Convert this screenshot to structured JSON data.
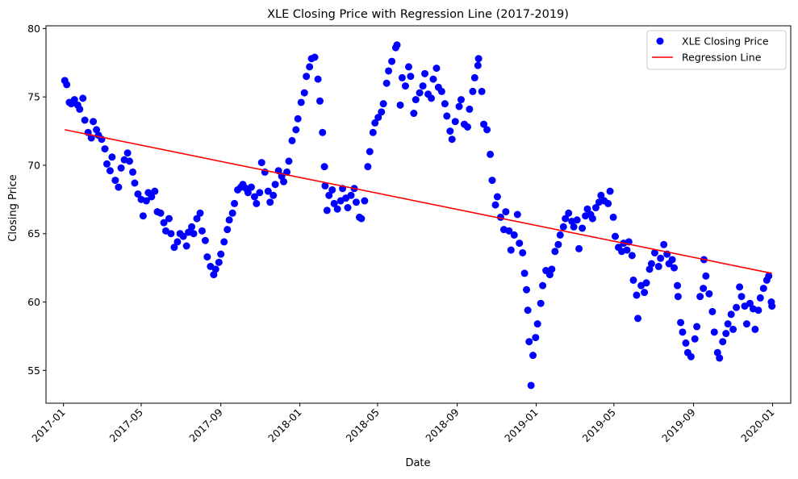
{
  "chart_data": {
    "type": "scatter",
    "title": "XLE Closing Price with Regression Line (2017-2019)",
    "xlabel": "Date",
    "ylabel": "Closing Price",
    "xlim": [
      "2016-12-05",
      "2020-01-29"
    ],
    "ylim": [
      52.6,
      80.2
    ],
    "x_ticks": [
      "2017-01",
      "2017-05",
      "2017-09",
      "2018-01",
      "2018-05",
      "2018-09",
      "2019-01",
      "2019-05",
      "2019-09",
      "2020-01"
    ],
    "y_ticks": [
      55,
      60,
      65,
      70,
      75,
      80
    ],
    "grid": false,
    "legend_position": "top-right",
    "colors": {
      "scatter": "#0000ff",
      "regression": "#ff0000"
    },
    "series": [
      {
        "name": "XLE Closing Price",
        "kind": "scatter",
        "points": [
          [
            "2017-01-03",
            76.2
          ],
          [
            "2017-01-06",
            75.9
          ],
          [
            "2017-01-10",
            74.6
          ],
          [
            "2017-01-13",
            74.5
          ],
          [
            "2017-01-18",
            74.8
          ],
          [
            "2017-01-23",
            74.4
          ],
          [
            "2017-01-26",
            74.1
          ],
          [
            "2017-01-31",
            74.9
          ],
          [
            "2017-02-03",
            73.3
          ],
          [
            "2017-02-08",
            72.4
          ],
          [
            "2017-02-13",
            72.0
          ],
          [
            "2017-02-16",
            73.2
          ],
          [
            "2017-02-21",
            72.6
          ],
          [
            "2017-02-24",
            72.2
          ],
          [
            "2017-03-01",
            71.9
          ],
          [
            "2017-03-06",
            71.2
          ],
          [
            "2017-03-09",
            70.1
          ],
          [
            "2017-03-14",
            69.6
          ],
          [
            "2017-03-17",
            70.6
          ],
          [
            "2017-03-22",
            68.9
          ],
          [
            "2017-03-27",
            68.4
          ],
          [
            "2017-03-31",
            69.8
          ],
          [
            "2017-04-05",
            70.4
          ],
          [
            "2017-04-10",
            70.9
          ],
          [
            "2017-04-13",
            70.3
          ],
          [
            "2017-04-18",
            69.5
          ],
          [
            "2017-04-21",
            68.7
          ],
          [
            "2017-04-26",
            67.9
          ],
          [
            "2017-05-01",
            67.5
          ],
          [
            "2017-05-04",
            66.3
          ],
          [
            "2017-05-09",
            67.4
          ],
          [
            "2017-05-12",
            68.0
          ],
          [
            "2017-05-17",
            67.7
          ],
          [
            "2017-05-22",
            68.1
          ],
          [
            "2017-05-26",
            66.6
          ],
          [
            "2017-05-31",
            66.5
          ],
          [
            "2017-06-05",
            65.8
          ],
          [
            "2017-06-08",
            65.2
          ],
          [
            "2017-06-13",
            66.1
          ],
          [
            "2017-06-16",
            65.0
          ],
          [
            "2017-06-21",
            64.0
          ],
          [
            "2017-06-26",
            64.4
          ],
          [
            "2017-06-30",
            65.0
          ],
          [
            "2017-07-05",
            64.8
          ],
          [
            "2017-07-10",
            64.1
          ],
          [
            "2017-07-13",
            65.1
          ],
          [
            "2017-07-18",
            65.5
          ],
          [
            "2017-07-21",
            65.0
          ],
          [
            "2017-07-26",
            66.1
          ],
          [
            "2017-07-31",
            66.5
          ],
          [
            "2017-08-03",
            65.2
          ],
          [
            "2017-08-08",
            64.5
          ],
          [
            "2017-08-11",
            63.3
          ],
          [
            "2017-08-16",
            62.6
          ],
          [
            "2017-08-21",
            62.0
          ],
          [
            "2017-08-24",
            62.4
          ],
          [
            "2017-08-29",
            62.9
          ],
          [
            "2017-09-01",
            63.5
          ],
          [
            "2017-09-06",
            64.4
          ],
          [
            "2017-09-11",
            65.3
          ],
          [
            "2017-09-14",
            66.0
          ],
          [
            "2017-09-19",
            66.5
          ],
          [
            "2017-09-22",
            67.2
          ],
          [
            "2017-09-27",
            68.2
          ],
          [
            "2017-10-02",
            68.4
          ],
          [
            "2017-10-05",
            68.6
          ],
          [
            "2017-10-10",
            68.3
          ],
          [
            "2017-10-13",
            68.0
          ],
          [
            "2017-10-18",
            68.4
          ],
          [
            "2017-10-23",
            67.7
          ],
          [
            "2017-10-26",
            67.2
          ],
          [
            "2017-10-31",
            68.0
          ],
          [
            "2017-11-03",
            70.2
          ],
          [
            "2017-11-08",
            69.5
          ],
          [
            "2017-11-13",
            68.1
          ],
          [
            "2017-11-16",
            67.3
          ],
          [
            "2017-11-21",
            67.8
          ],
          [
            "2017-11-24",
            68.6
          ],
          [
            "2017-11-29",
            69.6
          ],
          [
            "2017-12-04",
            69.2
          ],
          [
            "2017-12-07",
            68.8
          ],
          [
            "2017-12-12",
            69.5
          ],
          [
            "2017-12-15",
            70.3
          ],
          [
            "2017-12-20",
            71.8
          ],
          [
            "2017-12-26",
            72.6
          ],
          [
            "2017-12-29",
            73.4
          ],
          [
            "2018-01-03",
            74.6
          ],
          [
            "2018-01-08",
            75.3
          ],
          [
            "2018-01-11",
            76.5
          ],
          [
            "2018-01-16",
            77.2
          ],
          [
            "2018-01-19",
            77.8
          ],
          [
            "2018-01-24",
            77.9
          ],
          [
            "2018-01-29",
            76.3
          ],
          [
            "2018-02-01",
            74.7
          ],
          [
            "2018-02-05",
            72.4
          ],
          [
            "2018-02-08",
            69.9
          ],
          [
            "2018-02-09",
            68.5
          ],
          [
            "2018-02-12",
            66.7
          ],
          [
            "2018-02-15",
            67.8
          ],
          [
            "2018-02-20",
            68.2
          ],
          [
            "2018-02-23",
            67.2
          ],
          [
            "2018-02-28",
            66.8
          ],
          [
            "2018-03-05",
            67.4
          ],
          [
            "2018-03-08",
            68.3
          ],
          [
            "2018-03-13",
            67.6
          ],
          [
            "2018-03-16",
            66.9
          ],
          [
            "2018-03-21",
            67.8
          ],
          [
            "2018-03-26",
            68.3
          ],
          [
            "2018-03-29",
            67.3
          ],
          [
            "2018-04-03",
            66.2
          ],
          [
            "2018-04-06",
            66.1
          ],
          [
            "2018-04-11",
            67.4
          ],
          [
            "2018-04-16",
            69.9
          ],
          [
            "2018-04-19",
            71.0
          ],
          [
            "2018-04-24",
            72.4
          ],
          [
            "2018-04-27",
            73.1
          ],
          [
            "2018-05-02",
            73.5
          ],
          [
            "2018-05-07",
            73.9
          ],
          [
            "2018-05-10",
            74.5
          ],
          [
            "2018-05-15",
            76.0
          ],
          [
            "2018-05-18",
            76.9
          ],
          [
            "2018-05-23",
            77.6
          ],
          [
            "2018-05-29",
            78.6
          ],
          [
            "2018-05-31",
            78.8
          ],
          [
            "2018-06-05",
            74.4
          ],
          [
            "2018-06-08",
            76.4
          ],
          [
            "2018-06-13",
            75.8
          ],
          [
            "2018-06-18",
            77.2
          ],
          [
            "2018-06-21",
            76.5
          ],
          [
            "2018-06-26",
            73.8
          ],
          [
            "2018-06-29",
            74.8
          ],
          [
            "2018-07-05",
            75.3
          ],
          [
            "2018-07-10",
            75.8
          ],
          [
            "2018-07-13",
            76.7
          ],
          [
            "2018-07-18",
            75.2
          ],
          [
            "2018-07-23",
            74.9
          ],
          [
            "2018-07-26",
            76.3
          ],
          [
            "2018-07-31",
            77.1
          ],
          [
            "2018-08-03",
            75.7
          ],
          [
            "2018-08-08",
            75.4
          ],
          [
            "2018-08-13",
            74.5
          ],
          [
            "2018-08-16",
            73.6
          ],
          [
            "2018-08-21",
            72.5
          ],
          [
            "2018-08-24",
            71.9
          ],
          [
            "2018-08-29",
            73.2
          ],
          [
            "2018-09-04",
            74.3
          ],
          [
            "2018-09-07",
            74.8
          ],
          [
            "2018-09-12",
            73.0
          ],
          [
            "2018-09-17",
            72.8
          ],
          [
            "2018-09-20",
            74.1
          ],
          [
            "2018-09-25",
            75.4
          ],
          [
            "2018-09-28",
            76.4
          ],
          [
            "2018-10-03",
            77.3
          ],
          [
            "2018-10-04",
            77.8
          ],
          [
            "2018-10-09",
            75.4
          ],
          [
            "2018-10-12",
            73.0
          ],
          [
            "2018-10-17",
            72.6
          ],
          [
            "2018-10-22",
            70.8
          ],
          [
            "2018-10-25",
            68.9
          ],
          [
            "2018-10-30",
            67.1
          ],
          [
            "2018-11-02",
            67.7
          ],
          [
            "2018-11-07",
            66.2
          ],
          [
            "2018-11-12",
            65.3
          ],
          [
            "2018-11-15",
            66.6
          ],
          [
            "2018-11-20",
            65.2
          ],
          [
            "2018-11-23",
            63.8
          ],
          [
            "2018-11-28",
            64.9
          ],
          [
            "2018-12-03",
            66.4
          ],
          [
            "2018-12-06",
            64.3
          ],
          [
            "2018-12-11",
            63.6
          ],
          [
            "2018-12-14",
            62.1
          ],
          [
            "2018-12-17",
            60.9
          ],
          [
            "2018-12-19",
            59.4
          ],
          [
            "2018-12-21",
            57.1
          ],
          [
            "2018-12-24",
            53.9
          ],
          [
            "2018-12-27",
            56.1
          ],
          [
            "2018-12-31",
            57.4
          ],
          [
            "2019-01-03",
            58.4
          ],
          [
            "2019-01-08",
            59.9
          ],
          [
            "2019-01-11",
            61.2
          ],
          [
            "2019-01-16",
            62.3
          ],
          [
            "2019-01-22",
            62.0
          ],
          [
            "2019-01-25",
            62.4
          ],
          [
            "2019-01-30",
            63.7
          ],
          [
            "2019-02-04",
            64.2
          ],
          [
            "2019-02-07",
            64.9
          ],
          [
            "2019-02-12",
            65.5
          ],
          [
            "2019-02-15",
            66.1
          ],
          [
            "2019-02-20",
            66.5
          ],
          [
            "2019-02-25",
            65.9
          ],
          [
            "2019-02-28",
            65.5
          ],
          [
            "2019-03-05",
            66.0
          ],
          [
            "2019-03-08",
            63.9
          ],
          [
            "2019-03-13",
            65.4
          ],
          [
            "2019-03-18",
            66.3
          ],
          [
            "2019-03-21",
            66.8
          ],
          [
            "2019-03-26",
            66.4
          ],
          [
            "2019-03-29",
            66.1
          ],
          [
            "2019-04-03",
            66.9
          ],
          [
            "2019-04-08",
            67.3
          ],
          [
            "2019-04-11",
            67.8
          ],
          [
            "2019-04-16",
            67.4
          ],
          [
            "2019-04-22",
            67.2
          ],
          [
            "2019-04-25",
            68.1
          ],
          [
            "2019-04-30",
            66.2
          ],
          [
            "2019-05-03",
            64.8
          ],
          [
            "2019-05-08",
            64.0
          ],
          [
            "2019-05-13",
            63.7
          ],
          [
            "2019-05-16",
            64.3
          ],
          [
            "2019-05-21",
            63.8
          ],
          [
            "2019-05-24",
            64.4
          ],
          [
            "2019-05-29",
            63.4
          ],
          [
            "2019-05-31",
            61.6
          ],
          [
            "2019-06-05",
            60.5
          ],
          [
            "2019-06-07",
            58.8
          ],
          [
            "2019-06-12",
            61.2
          ],
          [
            "2019-06-17",
            60.7
          ],
          [
            "2019-06-20",
            61.4
          ],
          [
            "2019-06-25",
            62.4
          ],
          [
            "2019-06-28",
            62.8
          ],
          [
            "2019-07-03",
            63.6
          ],
          [
            "2019-07-09",
            62.6
          ],
          [
            "2019-07-12",
            63.2
          ],
          [
            "2019-07-17",
            64.2
          ],
          [
            "2019-07-22",
            63.5
          ],
          [
            "2019-07-25",
            62.8
          ],
          [
            "2019-07-30",
            63.1
          ],
          [
            "2019-08-02",
            62.5
          ],
          [
            "2019-08-07",
            61.2
          ],
          [
            "2019-08-08",
            60.4
          ],
          [
            "2019-08-12",
            58.5
          ],
          [
            "2019-08-15",
            57.8
          ],
          [
            "2019-08-20",
            57.0
          ],
          [
            "2019-08-23",
            56.3
          ],
          [
            "2019-08-28",
            56.0
          ],
          [
            "2019-09-03",
            57.3
          ],
          [
            "2019-09-06",
            58.2
          ],
          [
            "2019-09-11",
            60.4
          ],
          [
            "2019-09-16",
            61.0
          ],
          [
            "2019-09-17",
            63.1
          ],
          [
            "2019-09-20",
            61.9
          ],
          [
            "2019-09-25",
            60.6
          ],
          [
            "2019-09-30",
            59.3
          ],
          [
            "2019-10-03",
            57.8
          ],
          [
            "2019-10-08",
            56.3
          ],
          [
            "2019-10-11",
            55.9
          ],
          [
            "2019-10-16",
            57.1
          ],
          [
            "2019-10-21",
            57.7
          ],
          [
            "2019-10-24",
            58.4
          ],
          [
            "2019-10-29",
            59.1
          ],
          [
            "2019-11-01",
            58.0
          ],
          [
            "2019-11-06",
            59.6
          ],
          [
            "2019-11-11",
            61.1
          ],
          [
            "2019-11-14",
            60.4
          ],
          [
            "2019-11-19",
            59.7
          ],
          [
            "2019-11-22",
            58.4
          ],
          [
            "2019-11-27",
            59.9
          ],
          [
            "2019-12-02",
            59.5
          ],
          [
            "2019-12-05",
            58.0
          ],
          [
            "2019-12-10",
            59.4
          ],
          [
            "2019-12-13",
            60.3
          ],
          [
            "2019-12-18",
            61.0
          ],
          [
            "2019-12-23",
            61.6
          ],
          [
            "2019-12-26",
            61.9
          ],
          [
            "2019-12-30",
            60.0
          ],
          [
            "2019-12-31",
            59.7
          ]
        ]
      },
      {
        "name": "Regression Line",
        "kind": "line",
        "points": [
          [
            "2017-01-03",
            72.6
          ],
          [
            "2019-12-31",
            62.1
          ]
        ]
      }
    ]
  }
}
